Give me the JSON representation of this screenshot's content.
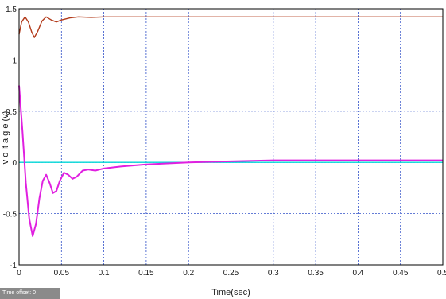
{
  "chart_data": {
    "type": "line",
    "title": "",
    "xlabel": "Time(sec)",
    "ylabel": "v o lt a g e (v)",
    "xlim": [
      0,
      0.5
    ],
    "ylim": [
      -1,
      1.5
    ],
    "x_ticks": [
      "0",
      "0.05",
      "0.1",
      "0.15",
      "0.2",
      "0.25",
      "0.3",
      "0.35",
      "0.4",
      "0.45",
      "0.5"
    ],
    "y_ticks": [
      "1.5",
      "1",
      "0.5",
      "0",
      "-0.5",
      "-1"
    ],
    "grid": true,
    "series": [
      {
        "color": "#b23a1a",
        "points": [
          [
            0,
            1.25
          ],
          [
            0.003,
            1.37
          ],
          [
            0.007,
            1.42
          ],
          [
            0.011,
            1.37
          ],
          [
            0.015,
            1.27
          ],
          [
            0.018,
            1.22
          ],
          [
            0.022,
            1.28
          ],
          [
            0.027,
            1.38
          ],
          [
            0.032,
            1.42
          ],
          [
            0.038,
            1.39
          ],
          [
            0.044,
            1.37
          ],
          [
            0.05,
            1.39
          ],
          [
            0.06,
            1.41
          ],
          [
            0.07,
            1.42
          ],
          [
            0.085,
            1.415
          ],
          [
            0.1,
            1.42
          ],
          [
            0.15,
            1.42
          ],
          [
            0.2,
            1.42
          ],
          [
            0.3,
            1.42
          ],
          [
            0.4,
            1.42
          ],
          [
            0.5,
            1.42
          ]
        ]
      },
      {
        "color": "#00d7d7",
        "points": [
          [
            0,
            0.0
          ],
          [
            0.5,
            0.0
          ]
        ]
      },
      {
        "color": "#e020e0",
        "points": [
          [
            0,
            0.75
          ],
          [
            0.004,
            0.3
          ],
          [
            0.008,
            -0.2
          ],
          [
            0.012,
            -0.55
          ],
          [
            0.016,
            -0.72
          ],
          [
            0.02,
            -0.6
          ],
          [
            0.024,
            -0.35
          ],
          [
            0.028,
            -0.18
          ],
          [
            0.032,
            -0.12
          ],
          [
            0.036,
            -0.2
          ],
          [
            0.04,
            -0.3
          ],
          [
            0.044,
            -0.28
          ],
          [
            0.048,
            -0.18
          ],
          [
            0.053,
            -0.1
          ],
          [
            0.058,
            -0.12
          ],
          [
            0.063,
            -0.16
          ],
          [
            0.068,
            -0.14
          ],
          [
            0.075,
            -0.08
          ],
          [
            0.082,
            -0.07
          ],
          [
            0.09,
            -0.08
          ],
          [
            0.1,
            -0.06
          ],
          [
            0.12,
            -0.04
          ],
          [
            0.15,
            -0.02
          ],
          [
            0.2,
            0.0
          ],
          [
            0.25,
            0.01
          ],
          [
            0.3,
            0.02
          ],
          [
            0.4,
            0.02
          ],
          [
            0.5,
            0.02
          ]
        ]
      }
    ]
  },
  "status": {
    "time_offset_label": "Time offset:",
    "time_offset_value": "0"
  }
}
